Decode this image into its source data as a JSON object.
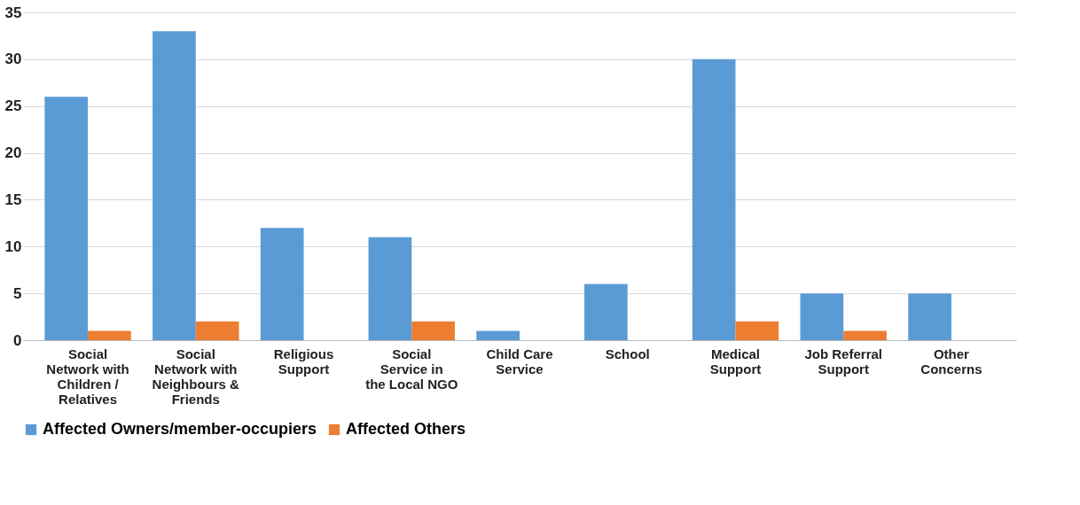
{
  "chart_data": {
    "type": "bar",
    "categories": [
      "Social Network with Children / Relatives",
      "Social Network with Neighbours & Friends",
      "Religious Support",
      "Social Service in the Local NGO",
      "Child Care Service",
      "School",
      "Medical Support",
      "Job Referral Support",
      "Other Concerns"
    ],
    "series": [
      {
        "name": "Affected Owners/member-occupiers",
        "color": "#5b9bd5",
        "values": [
          26,
          33,
          12,
          11,
          1,
          6,
          30,
          5,
          5
        ]
      },
      {
        "name": "Affected Others",
        "color": "#ed7d31",
        "values": [
          1,
          2,
          0,
          2,
          0,
          0,
          2,
          1,
          0
        ]
      }
    ],
    "ylim": [
      0,
      35
    ],
    "yticks": [
      0,
      5,
      10,
      15,
      20,
      25,
      30,
      35
    ],
    "grid": "y",
    "legend": "bottom"
  }
}
